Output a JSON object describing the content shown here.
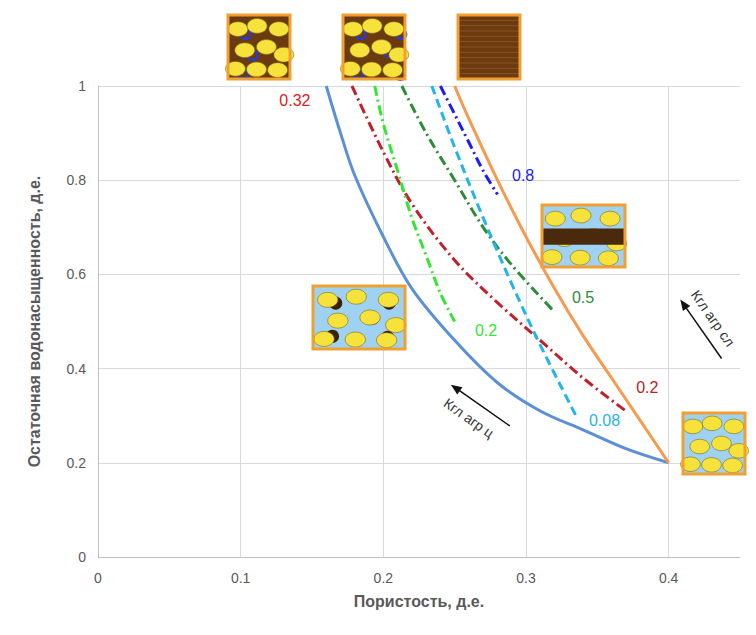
{
  "chart_data": {
    "type": "line",
    "x_label": "Пористость, д.е.",
    "y_label": "Остаточная водонасыщенность, д.е.",
    "xlim": [
      0,
      0.45
    ],
    "xticks": [
      0,
      0.1,
      0.2,
      0.3,
      0.4
    ],
    "ylim": [
      0,
      1
    ],
    "yticks": [
      0,
      0.2,
      0.4,
      0.6,
      0.8,
      1
    ],
    "grid": true,
    "series": [
      {
        "color": "#5b8fd6",
        "line_style": "solid",
        "marker": "none",
        "x": [
          0.16,
          0.17,
          0.18,
          0.2,
          0.22,
          0.25,
          0.28,
          0.31,
          0.34,
          0.37,
          0.4
        ],
        "values": [
          1.0,
          0.9,
          0.81,
          0.68,
          0.57,
          0.46,
          0.37,
          0.31,
          0.27,
          0.23,
          0.2
        ]
      },
      {
        "color": "#f59a4f",
        "line_style": "solid",
        "marker": "none",
        "x": [
          0.25,
          0.26,
          0.28,
          0.3,
          0.32,
          0.34,
          0.36,
          0.38,
          0.4
        ],
        "values": [
          1.0,
          0.93,
          0.8,
          0.68,
          0.57,
          0.47,
          0.38,
          0.29,
          0.2
        ]
      },
      {
        "color": "#c0202a",
        "line_style": "dashdot",
        "marker": "none",
        "x": [
          0.178,
          0.2,
          0.22,
          0.25,
          0.28,
          0.31,
          0.34,
          0.37
        ],
        "values": [
          1.0,
          0.86,
          0.75,
          0.63,
          0.54,
          0.46,
          0.38,
          0.31
        ]
      },
      {
        "color": "#33e633",
        "line_style": "dashdot",
        "marker": "none",
        "x": [
          0.194,
          0.2,
          0.21,
          0.22,
          0.23,
          0.24,
          0.25
        ],
        "values": [
          1.0,
          0.92,
          0.82,
          0.72,
          0.64,
          0.56,
          0.5
        ]
      },
      {
        "color": "#2e8b37",
        "line_style": "dashdot",
        "marker": "none",
        "x": [
          0.213,
          0.23,
          0.25,
          0.27,
          0.29,
          0.32
        ],
        "values": [
          1.0,
          0.9,
          0.8,
          0.7,
          0.62,
          0.52
        ]
      },
      {
        "color": "#1a1aff",
        "line_style": "dashdot",
        "marker": "none",
        "x": [
          0.24,
          0.25,
          0.26,
          0.27,
          0.28
        ],
        "values": [
          1.0,
          0.94,
          0.88,
          0.82,
          0.77
        ]
      },
      {
        "color": "#22b5e8",
        "line_style": "dashed",
        "marker": "none",
        "x": [
          0.234,
          0.25,
          0.27,
          0.29,
          0.31,
          0.335
        ],
        "values": [
          1.0,
          0.87,
          0.72,
          0.58,
          0.45,
          0.3
        ]
      }
    ],
    "annotations": [
      {
        "text": "0.32",
        "x": 0.138,
        "y": 0.97,
        "color": "#e02020"
      },
      {
        "text": "0.8",
        "x": 0.298,
        "y": 0.81,
        "color": "#1a1aff"
      },
      {
        "text": "0.5",
        "x": 0.34,
        "y": 0.55,
        "color": "#2e8b37"
      },
      {
        "text": "0.2",
        "x": 0.385,
        "y": 0.36,
        "color": "#c0202a"
      },
      {
        "text": "0.2",
        "x": 0.272,
        "y": 0.48,
        "color": "#33e633"
      },
      {
        "text": "0.08",
        "x": 0.355,
        "y": 0.29,
        "color": "#22b5e8"
      },
      {
        "text": "Кгл агр ц",
        "x": 0.26,
        "y": 0.295,
        "color": "#333333",
        "marker": "arrow"
      },
      {
        "text": "Кгл агр сл",
        "x": 0.431,
        "y": 0.507,
        "color": "#333333",
        "marker": "arrow"
      }
    ]
  }
}
